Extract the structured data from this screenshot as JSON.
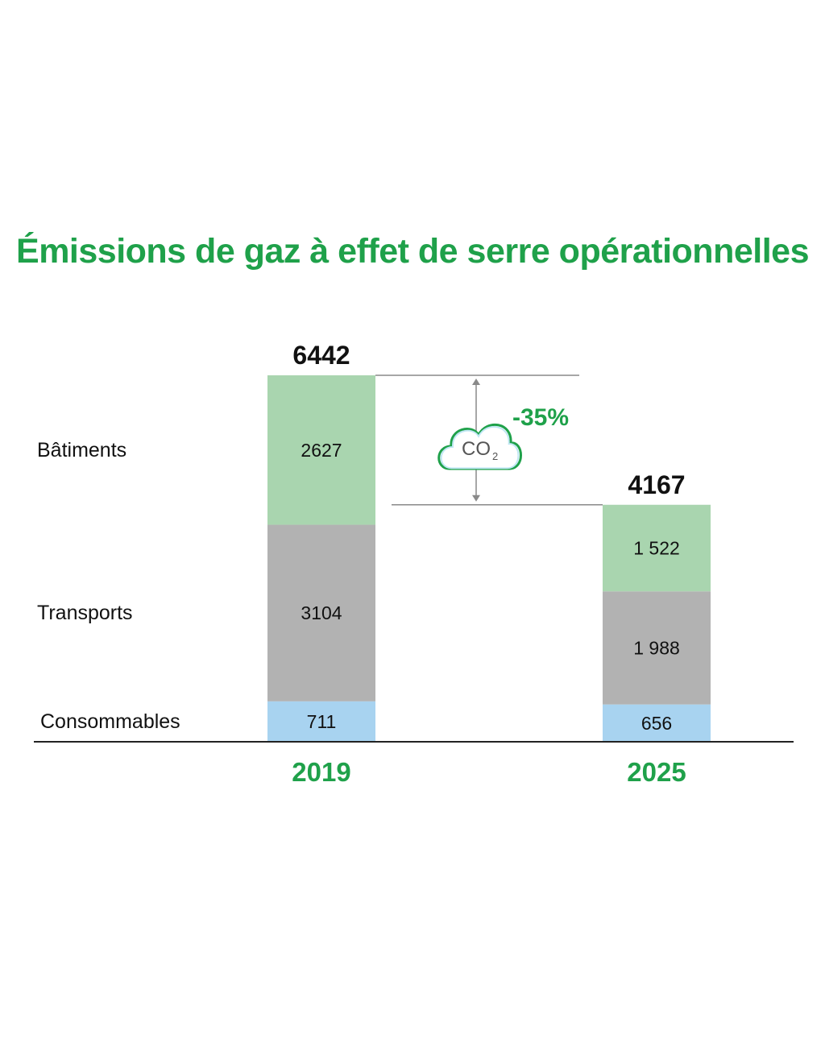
{
  "chart_data": {
    "type": "bar",
    "stacked": true,
    "title": "Émissions de gaz à effet de serre opérationnelles",
    "categories": [
      "2019",
      "2025"
    ],
    "series": [
      {
        "name": "Consommables",
        "values": [
          711,
          656
        ],
        "color": "#a8d3f0"
      },
      {
        "name": "Transports",
        "values": [
          3104,
          1988
        ],
        "color": "#b2b2b2"
      },
      {
        "name": "Bâtiments",
        "values": [
          2627,
          1522
        ],
        "color": "#a9d5af"
      }
    ],
    "segment_labels": [
      [
        "711",
        "656"
      ],
      [
        "3104",
        "1 988"
      ],
      [
        "2627",
        "1 522"
      ]
    ],
    "totals": [
      6442,
      4167
    ],
    "total_labels": [
      "6442",
      "4167"
    ],
    "change": {
      "label": "-35%",
      "icon": "co2-cloud-icon",
      "icon_text": "CO",
      "icon_subscript": "2"
    },
    "colors": {
      "title": "#1fa14a",
      "category": "#1fa14a",
      "change": "#1fa14a"
    },
    "legend_placement": "left",
    "grid": false
  }
}
